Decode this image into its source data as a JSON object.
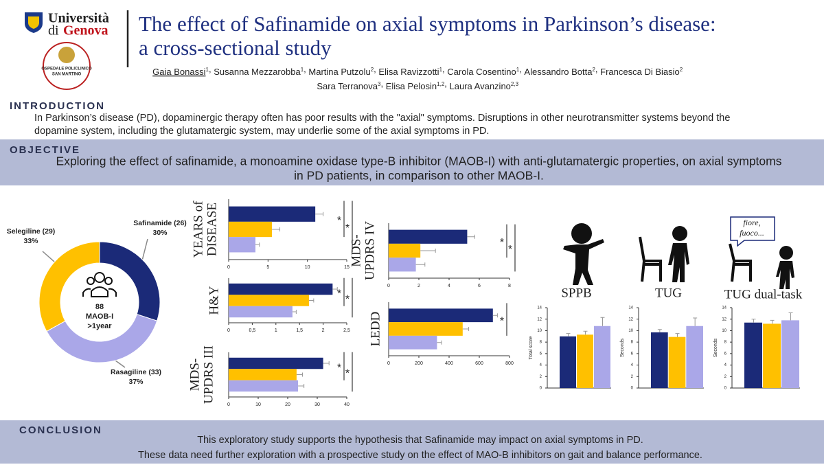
{
  "header": {
    "university": [
      "Università",
      "di",
      "Genova"
    ],
    "hospital": [
      "OSPEDALE POLICLINICO",
      "SAN MARTINO"
    ],
    "title": [
      "The effect of Safinamide on axial symptoms in Parkinson’s disease:",
      "a cross-sectional study"
    ],
    "author_separator": ",",
    "authors": [
      [
        {
          "name": "Gaia Bonassi",
          "aff": "1"
        },
        {
          "name": "Susanna Mezzarobba",
          "aff": "1"
        },
        {
          "name": "Martina Putzolu",
          "aff": "2"
        },
        {
          "name": "Elisa Ravizzotti",
          "aff": "1"
        },
        {
          "name": "Carola Cosentino",
          "aff": "1"
        },
        {
          "name": "Alessandro Botta",
          "aff": "2"
        },
        {
          "name": "Francesca Di Biasio",
          "aff": "2"
        }
      ],
      [
        {
          "name": "Sara Terranova",
          "aff": "3"
        },
        {
          "name": "Elisa Pelosin",
          "aff": "1,2"
        },
        {
          "name": "Laura Avanzino",
          "aff": "2,3"
        }
      ]
    ]
  },
  "introduction": {
    "heading": "INTRODUCTION",
    "lines": [
      "In Parkinson’s disease (PD), dopaminergic therapy often has poor results with the \"axial\" symptoms. Disruptions in other neurotransmitter systems beyond the",
      "dopamine system, including the glutamatergic system, may underlie some of the axial symptoms in PD."
    ]
  },
  "objective": {
    "heading": "OBJECTIVE",
    "lines": [
      "Exploring the effect of safinamide, a monoamine oxidase type-B inhibitor (MAOB-I) with anti-glutamatergic properties, on axial symptoms",
      "in PD patients, in comparison to other MAOB-I."
    ]
  },
  "conclusion": {
    "heading": "CONCLUSION",
    "lines": [
      "This exploratory study supports the hypothesis that Safinamide may impact on axial symptoms in PD.",
      "These data need further exploration with a prospective study on the effect of MAO-B inhibitors on gait and balance performance."
    ]
  },
  "chart_data": [
    {
      "type": "pie",
      "donut": true,
      "categories": [
        "Safinamide (26)",
        "Rasagiline (33)",
        "Selegiline (29)"
      ],
      "values": [
        30,
        37,
        33
      ],
      "value_labels": [
        "30%",
        "37%",
        "33%"
      ],
      "colors": [
        "#1b2a78",
        "#aaa7e8",
        "#ffc000"
      ],
      "center_text": [
        "88",
        "MAOB-I",
        ">1year"
      ]
    },
    {
      "type": "bar",
      "orientation": "horizontal",
      "title": [
        "YEARS of",
        "DISEASE"
      ],
      "values": [
        11,
        5.5,
        3.4
      ],
      "errors": [
        1,
        1,
        0.5
      ],
      "colors": [
        "#1b2a78",
        "#ffc000",
        "#aaa7e8"
      ],
      "xlim": [
        0,
        15
      ],
      "xticks": [
        0,
        5,
        10,
        15
      ],
      "significance": [
        "*",
        "*"
      ]
    },
    {
      "type": "bar",
      "orientation": "horizontal",
      "title": [
        "H&Y"
      ],
      "values": [
        2.2,
        1.7,
        1.35
      ],
      "errors": [
        0.1,
        0.1,
        0.08
      ],
      "colors": [
        "#1b2a78",
        "#ffc000",
        "#aaa7e8"
      ],
      "xlim": [
        0,
        2.5
      ],
      "xticks": [
        0,
        {
          "value": 0.5,
          "label": "0,5"
        },
        1,
        {
          "value": 1.5,
          "label": "1,5"
        },
        2,
        {
          "value": 2.5,
          "label": "2,5"
        }
      ],
      "significance": [
        "*",
        "*"
      ]
    },
    {
      "type": "bar",
      "orientation": "horizontal",
      "title": [
        "MDS-",
        "UPDRS III"
      ],
      "values": [
        32,
        23,
        23.5
      ],
      "errors": [
        2,
        2,
        2
      ],
      "colors": [
        "#1b2a78",
        "#ffc000",
        "#aaa7e8"
      ],
      "xlim": [
        0,
        40
      ],
      "xticks": [
        0,
        10,
        20,
        30,
        40
      ],
      "significance": [
        "*",
        "*"
      ]
    },
    {
      "type": "bar",
      "orientation": "horizontal",
      "title": [
        "MDS-",
        "UPDRS IV"
      ],
      "values": [
        5.2,
        2.1,
        1.8
      ],
      "errors": [
        0.5,
        1,
        0.6
      ],
      "colors": [
        "#1b2a78",
        "#ffc000",
        "#aaa7e8"
      ],
      "xlim": [
        0,
        8
      ],
      "xticks": [
        0,
        2,
        4,
        6,
        8
      ],
      "significance": [
        "*",
        "*"
      ]
    },
    {
      "type": "bar",
      "orientation": "horizontal",
      "title": [
        "LEDD"
      ],
      "values": [
        690,
        490,
        320
      ],
      "errors": [
        30,
        40,
        30
      ],
      "colors": [
        "#1b2a78",
        "#ffc000",
        "#aaa7e8"
      ],
      "xlim": [
        0,
        800
      ],
      "xticks": [
        0,
        200,
        400,
        600,
        800
      ],
      "significance": [
        "*"
      ]
    },
    {
      "type": "bar",
      "title": "SPPB",
      "ylabel": "Total score",
      "values": [
        9,
        9.3,
        10.8
      ],
      "errors": [
        0.5,
        0.6,
        1.5
      ],
      "colors": [
        "#1b2a78",
        "#ffc000",
        "#aaa7e8"
      ],
      "ylim": [
        0,
        14
      ],
      "yticks": [
        0,
        2,
        4,
        6,
        8,
        10,
        12,
        14
      ]
    },
    {
      "type": "bar",
      "title": "TUG",
      "ylabel": "Seconds",
      "values": [
        9.7,
        8.9,
        10.8
      ],
      "errors": [
        0.5,
        0.6,
        1.4
      ],
      "colors": [
        "#1b2a78",
        "#ffc000",
        "#aaa7e8"
      ],
      "ylim": [
        0,
        14
      ],
      "yticks": [
        0,
        2,
        4,
        6,
        8,
        10,
        12,
        14
      ]
    },
    {
      "type": "bar",
      "title": "TUG dual-task",
      "ylabel": "Seconds",
      "speech": [
        "fiore,",
        "fuoco..."
      ],
      "values": [
        11.4,
        11.2,
        11.8
      ],
      "errors": [
        0.6,
        0.6,
        1.3
      ],
      "colors": [
        "#1b2a78",
        "#ffc000",
        "#aaa7e8"
      ],
      "ylim": [
        0,
        14
      ],
      "yticks": [
        0,
        2,
        4,
        6,
        8,
        10,
        12,
        14
      ]
    }
  ]
}
